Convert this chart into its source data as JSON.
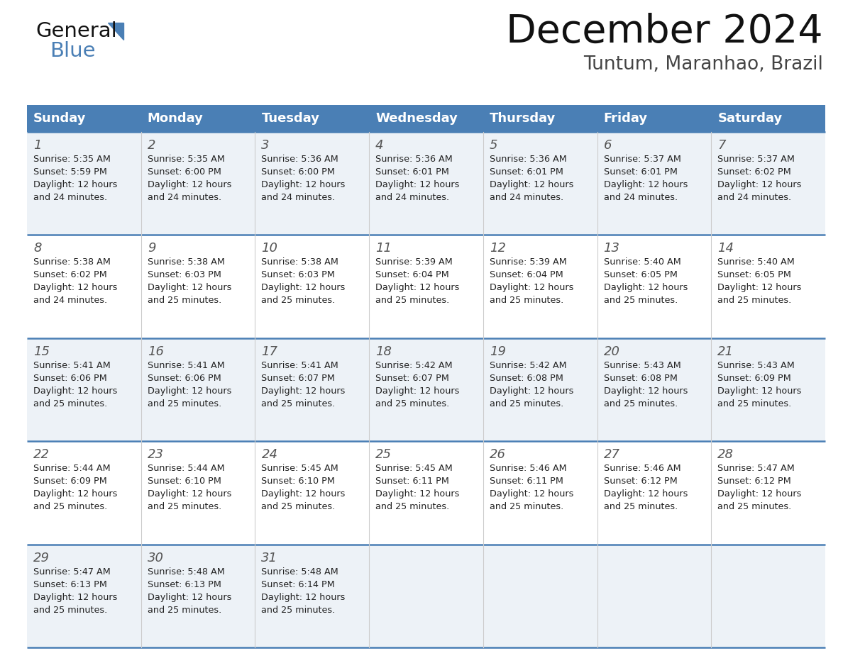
{
  "title": "December 2024",
  "subtitle": "Tuntum, Maranhao, Brazil",
  "header_bg": "#4a7fb5",
  "header_text_color": "#ffffff",
  "day_names": [
    "Sunday",
    "Monday",
    "Tuesday",
    "Wednesday",
    "Thursday",
    "Friday",
    "Saturday"
  ],
  "cell_bg_odd_row": "#edf2f7",
  "cell_bg_even_row": "#ffffff",
  "cell_bg_last_row": "#ffffff",
  "border_color": "#4a7fb5",
  "text_color": "#333333",
  "days": [
    {
      "day": 1,
      "row": 0,
      "col": 0,
      "sunrise": "5:35 AM",
      "sunset": "5:59 PM",
      "daylight": "12 hours and 24 minutes"
    },
    {
      "day": 2,
      "row": 0,
      "col": 1,
      "sunrise": "5:35 AM",
      "sunset": "6:00 PM",
      "daylight": "12 hours and 24 minutes"
    },
    {
      "day": 3,
      "row": 0,
      "col": 2,
      "sunrise": "5:36 AM",
      "sunset": "6:00 PM",
      "daylight": "12 hours and 24 minutes"
    },
    {
      "day": 4,
      "row": 0,
      "col": 3,
      "sunrise": "5:36 AM",
      "sunset": "6:01 PM",
      "daylight": "12 hours and 24 minutes"
    },
    {
      "day": 5,
      "row": 0,
      "col": 4,
      "sunrise": "5:36 AM",
      "sunset": "6:01 PM",
      "daylight": "12 hours and 24 minutes"
    },
    {
      "day": 6,
      "row": 0,
      "col": 5,
      "sunrise": "5:37 AM",
      "sunset": "6:01 PM",
      "daylight": "12 hours and 24 minutes"
    },
    {
      "day": 7,
      "row": 0,
      "col": 6,
      "sunrise": "5:37 AM",
      "sunset": "6:02 PM",
      "daylight": "12 hours and 24 minutes"
    },
    {
      "day": 8,
      "row": 1,
      "col": 0,
      "sunrise": "5:38 AM",
      "sunset": "6:02 PM",
      "daylight": "12 hours and 24 minutes"
    },
    {
      "day": 9,
      "row": 1,
      "col": 1,
      "sunrise": "5:38 AM",
      "sunset": "6:03 PM",
      "daylight": "12 hours and 25 minutes"
    },
    {
      "day": 10,
      "row": 1,
      "col": 2,
      "sunrise": "5:38 AM",
      "sunset": "6:03 PM",
      "daylight": "12 hours and 25 minutes"
    },
    {
      "day": 11,
      "row": 1,
      "col": 3,
      "sunrise": "5:39 AM",
      "sunset": "6:04 PM",
      "daylight": "12 hours and 25 minutes"
    },
    {
      "day": 12,
      "row": 1,
      "col": 4,
      "sunrise": "5:39 AM",
      "sunset": "6:04 PM",
      "daylight": "12 hours and 25 minutes"
    },
    {
      "day": 13,
      "row": 1,
      "col": 5,
      "sunrise": "5:40 AM",
      "sunset": "6:05 PM",
      "daylight": "12 hours and 25 minutes"
    },
    {
      "day": 14,
      "row": 1,
      "col": 6,
      "sunrise": "5:40 AM",
      "sunset": "6:05 PM",
      "daylight": "12 hours and 25 minutes"
    },
    {
      "day": 15,
      "row": 2,
      "col": 0,
      "sunrise": "5:41 AM",
      "sunset": "6:06 PM",
      "daylight": "12 hours and 25 minutes"
    },
    {
      "day": 16,
      "row": 2,
      "col": 1,
      "sunrise": "5:41 AM",
      "sunset": "6:06 PM",
      "daylight": "12 hours and 25 minutes"
    },
    {
      "day": 17,
      "row": 2,
      "col": 2,
      "sunrise": "5:41 AM",
      "sunset": "6:07 PM",
      "daylight": "12 hours and 25 minutes"
    },
    {
      "day": 18,
      "row": 2,
      "col": 3,
      "sunrise": "5:42 AM",
      "sunset": "6:07 PM",
      "daylight": "12 hours and 25 minutes"
    },
    {
      "day": 19,
      "row": 2,
      "col": 4,
      "sunrise": "5:42 AM",
      "sunset": "6:08 PM",
      "daylight": "12 hours and 25 minutes"
    },
    {
      "day": 20,
      "row": 2,
      "col": 5,
      "sunrise": "5:43 AM",
      "sunset": "6:08 PM",
      "daylight": "12 hours and 25 minutes"
    },
    {
      "day": 21,
      "row": 2,
      "col": 6,
      "sunrise": "5:43 AM",
      "sunset": "6:09 PM",
      "daylight": "12 hours and 25 minutes"
    },
    {
      "day": 22,
      "row": 3,
      "col": 0,
      "sunrise": "5:44 AM",
      "sunset": "6:09 PM",
      "daylight": "12 hours and 25 minutes"
    },
    {
      "day": 23,
      "row": 3,
      "col": 1,
      "sunrise": "5:44 AM",
      "sunset": "6:10 PM",
      "daylight": "12 hours and 25 minutes"
    },
    {
      "day": 24,
      "row": 3,
      "col": 2,
      "sunrise": "5:45 AM",
      "sunset": "6:10 PM",
      "daylight": "12 hours and 25 minutes"
    },
    {
      "day": 25,
      "row": 3,
      "col": 3,
      "sunrise": "5:45 AM",
      "sunset": "6:11 PM",
      "daylight": "12 hours and 25 minutes"
    },
    {
      "day": 26,
      "row": 3,
      "col": 4,
      "sunrise": "5:46 AM",
      "sunset": "6:11 PM",
      "daylight": "12 hours and 25 minutes"
    },
    {
      "day": 27,
      "row": 3,
      "col": 5,
      "sunrise": "5:46 AM",
      "sunset": "6:12 PM",
      "daylight": "12 hours and 25 minutes"
    },
    {
      "day": 28,
      "row": 3,
      "col": 6,
      "sunrise": "5:47 AM",
      "sunset": "6:12 PM",
      "daylight": "12 hours and 25 minutes"
    },
    {
      "day": 29,
      "row": 4,
      "col": 0,
      "sunrise": "5:47 AM",
      "sunset": "6:13 PM",
      "daylight": "12 hours and 25 minutes"
    },
    {
      "day": 30,
      "row": 4,
      "col": 1,
      "sunrise": "5:48 AM",
      "sunset": "6:13 PM",
      "daylight": "12 hours and 25 minutes"
    },
    {
      "day": 31,
      "row": 4,
      "col": 2,
      "sunrise": "5:48 AM",
      "sunset": "6:14 PM",
      "daylight": "12 hours and 25 minutes"
    }
  ],
  "num_rows": 5,
  "logo_text_general": "General",
  "logo_text_blue": "Blue",
  "logo_triangle_color": "#4a7fb5"
}
